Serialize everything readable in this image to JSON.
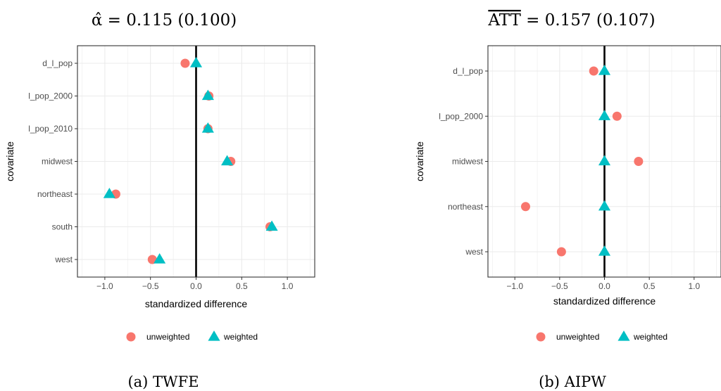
{
  "colors": {
    "unweighted": "#F8766D",
    "weighted": "#00BFC4",
    "grid": "#EBEBEB",
    "zero_line": "#000000"
  },
  "legend": {
    "unweighted_label": "unweighted",
    "weighted_label": "weighted",
    "unweighted_shape": "circle-icon",
    "weighted_shape": "triangle-icon"
  },
  "chart_data": [
    {
      "type": "scatter",
      "panel": "a",
      "title_html": "&#945;&#770; = 0.115 (0.100)",
      "caption": "(a) TWFE",
      "xlabel": "standardized difference",
      "ylabel": "covariate",
      "xlim": [
        -1.3,
        1.3
      ],
      "x_ticks": [
        "−1.0",
        "−0.5",
        "0.0",
        "0.5",
        "1.0"
      ],
      "x_tick_values": [
        -1.0,
        -0.5,
        0.0,
        0.5,
        1.0
      ],
      "categories": [
        "d_l_pop",
        "l_pop_2000",
        "l_pop_2010",
        "midwest",
        "northeast",
        "south",
        "west"
      ],
      "series": [
        {
          "name": "unweighted",
          "values": [
            -0.12,
            0.14,
            0.13,
            0.38,
            -0.88,
            0.81,
            -0.48
          ]
        },
        {
          "name": "weighted",
          "values": [
            0.0,
            0.13,
            0.13,
            0.34,
            -0.95,
            0.83,
            -0.4
          ]
        }
      ],
      "grid": true
    },
    {
      "type": "scatter",
      "panel": "b",
      "title_html": "<tspan text-decoration='overline'>ATT</tspan> = 0.157 (0.107)",
      "caption": "(b) AIPW",
      "xlabel": "standardized difference",
      "ylabel": "covariate",
      "xlim": [
        -1.3,
        1.3
      ],
      "x_ticks": [
        "−1.0",
        "−0.5",
        "0.0",
        "0.5",
        "1.0"
      ],
      "x_tick_values": [
        -1.0,
        -0.5,
        0.0,
        0.5,
        1.0
      ],
      "categories": [
        "d_l_pop",
        "l_pop_2000",
        "midwest",
        "northeast",
        "west"
      ],
      "series": [
        {
          "name": "unweighted",
          "values": [
            -0.12,
            0.14,
            0.38,
            -0.88,
            -0.48
          ]
        },
        {
          "name": "weighted",
          "values": [
            0.0,
            0.0,
            0.0,
            0.0,
            0.0
          ]
        }
      ],
      "grid": true
    }
  ]
}
